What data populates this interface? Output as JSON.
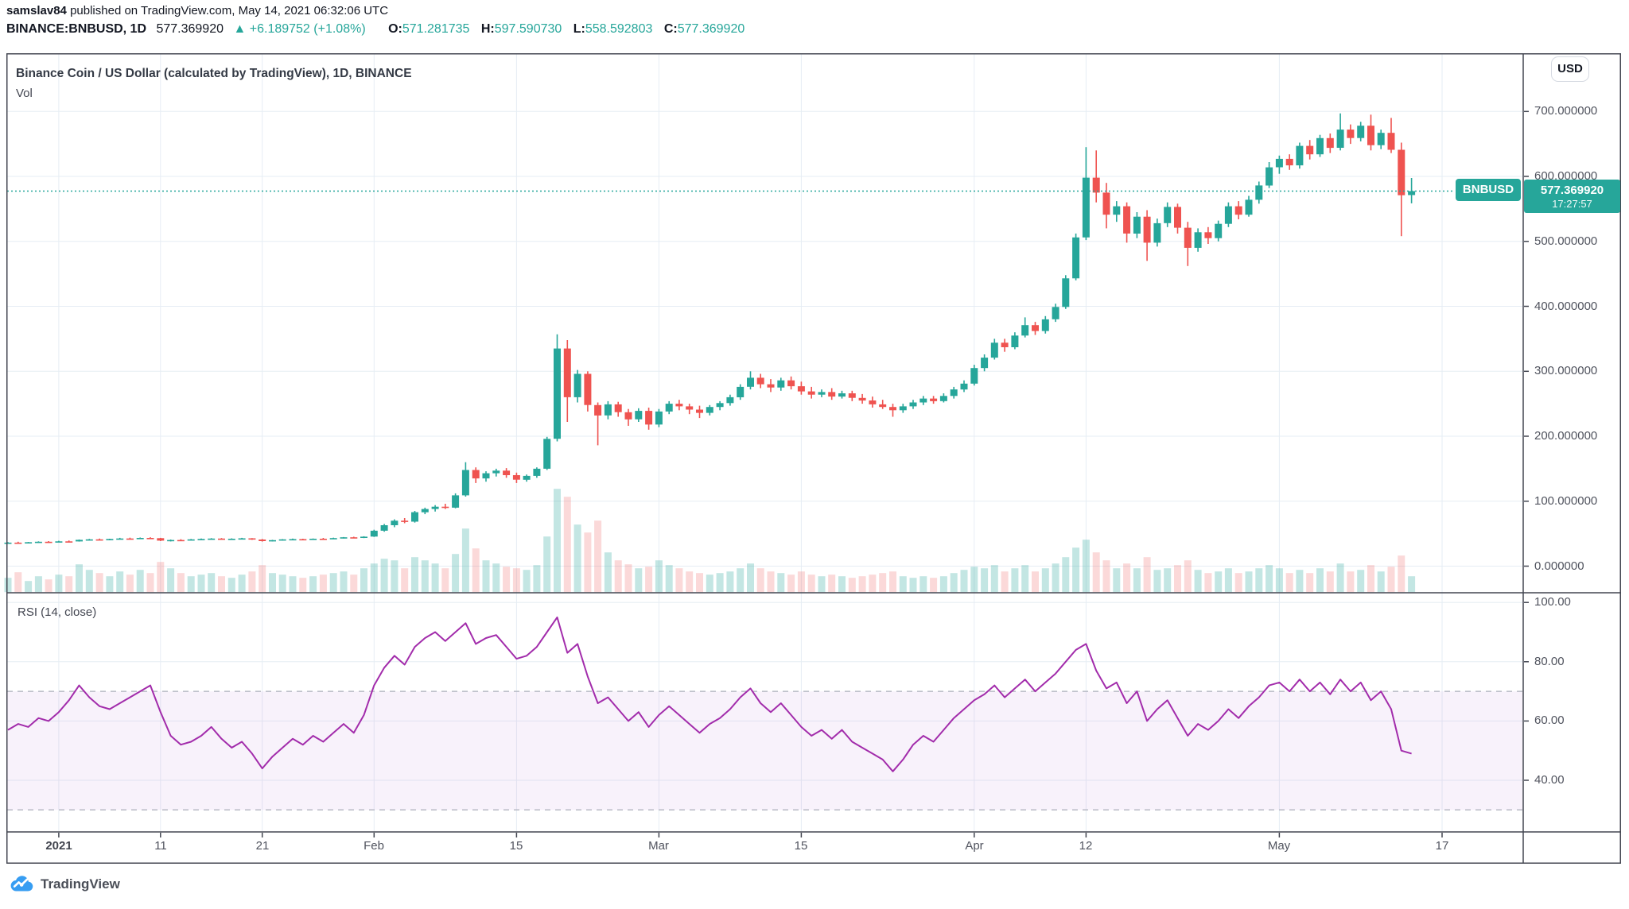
{
  "header": {
    "author": "samslav84",
    "publish_text": " published on TradingView.com, May 14, 2021 06:32:06 UTC"
  },
  "symbol_bar": {
    "symbol": "BINANCE:BNBUSD, 1D",
    "last": "577.369920",
    "direction": "▲",
    "change": "+6.189752 (+1.08%)",
    "o_label": "O:",
    "o": "571.281735",
    "h_label": "H:",
    "h": "597.590730",
    "l_label": "L:",
    "l": "558.592803",
    "c_label": "C:",
    "c": "577.369920"
  },
  "chart": {
    "title": "Binance Coin / US Dollar (calculated by TradingView), 1D, BINANCE",
    "vol_label": "Vol",
    "rsi_label": "RSI (14, close)",
    "currency_button": "USD"
  },
  "price_tag": {
    "symbol": "BNBUSD",
    "price": "577.369920",
    "countdown": "17:27:57"
  },
  "watermark": {
    "brand": "TradingView"
  },
  "colors": {
    "up": "#26a69a",
    "down": "#ef5350",
    "rsi_line": "#a22cab",
    "grid": "#e6edf4",
    "frame": "#434651",
    "band_fill": "rgba(169,84,199,0.08)",
    "band_dash": "#b7bac4",
    "vol_up": "rgba(38,166,154,0.28)",
    "vol_down": "rgba(239,83,80,0.22)"
  },
  "chart_data": {
    "type": "candlestick",
    "symbol": "BINANCE:BNBUSD",
    "interval": "1D",
    "start_date": "2020-12-27",
    "title": "Binance Coin / US Dollar (calculated by TradingView), 1D, BINANCE",
    "last_price": 577.36992,
    "price_axis": {
      "ticks": [
        700,
        600,
        500,
        400,
        300,
        200,
        100,
        0
      ],
      "labels": [
        "700.000000",
        "600.000000",
        "500.000000",
        "400.000000",
        "300.000000",
        "200.000000",
        "100.000000",
        "0.000000"
      ]
    },
    "rsi_axis": {
      "ticks": [
        100,
        80,
        60,
        40
      ],
      "labels": [
        "100.00",
        "80.00",
        "60.00",
        "40.00"
      ],
      "band": [
        70,
        30
      ],
      "params": "RSI (14, close)"
    },
    "time_axis": [
      {
        "label": "2021",
        "day": 5,
        "bold": true
      },
      {
        "label": "11",
        "day": 15
      },
      {
        "label": "21",
        "day": 25
      },
      {
        "label": "Feb",
        "day": 36
      },
      {
        "label": "15",
        "day": 50
      },
      {
        "label": "Mar",
        "day": 64
      },
      {
        "label": "15",
        "day": 78
      },
      {
        "label": "Apr",
        "day": 95
      },
      {
        "label": "12",
        "day": 106
      },
      {
        "label": "May",
        "day": 125
      },
      {
        "label": "17",
        "day": 141
      }
    ],
    "candles": [
      [
        35.5,
        37,
        34.5,
        36.2
      ],
      [
        36.2,
        37.5,
        35.3,
        35.8
      ],
      [
        35.8,
        37.2,
        35,
        36.8
      ],
      [
        36.8,
        38.2,
        36,
        37.6
      ],
      [
        37.6,
        38.5,
        36.5,
        37.2
      ],
      [
        37.2,
        39,
        36.8,
        38.2
      ],
      [
        38.2,
        39.5,
        37.5,
        38
      ],
      [
        38,
        41,
        37.8,
        40.5
      ],
      [
        40.5,
        42,
        39.5,
        41.2
      ],
      [
        41.2,
        42.5,
        40,
        41
      ],
      [
        41,
        42.2,
        39.8,
        41.8
      ],
      [
        41.8,
        43.5,
        41,
        42.6
      ],
      [
        42.6,
        43.8,
        41.5,
        42
      ],
      [
        42,
        44,
        41.6,
        43.4
      ],
      [
        43.4,
        44.5,
        42.5,
        43
      ],
      [
        43,
        43.6,
        38.5,
        39.2
      ],
      [
        39.2,
        41,
        38,
        40.2
      ],
      [
        40.2,
        41.5,
        39.5,
        40
      ],
      [
        40,
        41.8,
        39.6,
        41.2
      ],
      [
        41.2,
        42.6,
        40.5,
        41.8
      ],
      [
        41.8,
        43,
        41,
        42.4
      ],
      [
        42.4,
        43.2,
        41.2,
        41.6
      ],
      [
        41.6,
        42.8,
        40.8,
        42.2
      ],
      [
        42.2,
        43.5,
        41.5,
        42.8
      ],
      [
        42.8,
        43.2,
        40.5,
        41
      ],
      [
        41,
        41.8,
        37.8,
        38.6
      ],
      [
        38.6,
        40.5,
        38,
        40
      ],
      [
        40,
        41.6,
        39.4,
        41.2
      ],
      [
        41.2,
        42.4,
        40.2,
        41.6
      ],
      [
        41.6,
        42.2,
        40.4,
        41
      ],
      [
        41,
        42.6,
        40.6,
        42.2
      ],
      [
        42.2,
        43.4,
        41.4,
        42
      ],
      [
        42,
        43.8,
        41.6,
        43.2
      ],
      [
        43.2,
        44.8,
        42.6,
        44.4
      ],
      [
        44.4,
        45.2,
        43,
        43.6
      ],
      [
        43.6,
        46,
        43.2,
        45.4
      ],
      [
        45.4,
        56,
        45,
        54.5
      ],
      [
        54.5,
        65,
        53,
        63
      ],
      [
        63,
        72,
        60,
        70
      ],
      [
        70,
        74,
        66,
        68.5
      ],
      [
        68.5,
        85,
        67,
        83
      ],
      [
        83,
        90,
        80,
        88
      ],
      [
        88,
        94,
        84,
        91.5
      ],
      [
        91.5,
        96,
        88,
        90
      ],
      [
        90,
        112,
        89,
        109
      ],
      [
        109,
        160,
        107,
        148
      ],
      [
        148,
        152,
        128,
        135
      ],
      [
        135,
        146,
        130,
        143
      ],
      [
        143,
        150,
        138,
        147
      ],
      [
        147,
        151,
        136,
        140
      ],
      [
        140,
        144,
        128,
        133
      ],
      [
        133,
        141,
        130,
        139
      ],
      [
        139,
        152,
        136,
        150
      ],
      [
        150,
        199,
        148,
        196
      ],
      [
        196,
        357,
        192,
        335
      ],
      [
        335,
        348,
        222,
        260
      ],
      [
        260,
        302,
        252,
        296
      ],
      [
        296,
        300,
        238,
        248
      ],
      [
        248,
        252,
        186,
        232
      ],
      [
        232,
        254,
        226,
        249
      ],
      [
        249,
        253,
        230,
        237
      ],
      [
        237,
        242,
        216,
        226
      ],
      [
        226,
        243,
        222,
        239
      ],
      [
        239,
        244,
        210,
        218
      ],
      [
        218,
        242,
        214,
        238
      ],
      [
        238,
        254,
        234,
        250
      ],
      [
        250,
        256,
        240,
        246
      ],
      [
        246,
        250,
        234,
        241
      ],
      [
        241,
        247,
        228,
        236
      ],
      [
        236,
        248,
        232,
        245
      ],
      [
        245,
        254,
        240,
        251
      ],
      [
        251,
        264,
        247,
        260
      ],
      [
        260,
        280,
        256,
        276
      ],
      [
        276,
        300,
        272,
        290
      ],
      [
        290,
        296,
        274,
        280
      ],
      [
        280,
        288,
        268,
        275
      ],
      [
        275,
        290,
        270,
        286
      ],
      [
        286,
        292,
        272,
        277
      ],
      [
        277,
        284,
        264,
        269
      ],
      [
        269,
        276,
        258,
        264
      ],
      [
        264,
        272,
        260,
        268
      ],
      [
        268,
        274,
        256,
        261
      ],
      [
        261,
        270,
        258,
        266
      ],
      [
        266,
        270,
        254,
        259
      ],
      [
        259,
        265,
        250,
        255
      ],
      [
        255,
        261,
        244,
        249
      ],
      [
        249,
        256,
        242,
        245
      ],
      [
        245,
        250,
        230,
        240
      ],
      [
        240,
        250,
        236,
        246
      ],
      [
        246,
        256,
        242,
        252
      ],
      [
        252,
        262,
        248,
        258
      ],
      [
        258,
        262,
        250,
        254
      ],
      [
        254,
        266,
        252,
        262
      ],
      [
        262,
        276,
        258,
        272
      ],
      [
        272,
        286,
        268,
        281
      ],
      [
        281,
        310,
        278,
        305
      ],
      [
        305,
        326,
        300,
        321
      ],
      [
        321,
        350,
        318,
        344
      ],
      [
        344,
        350,
        330,
        337
      ],
      [
        337,
        360,
        334,
        355
      ],
      [
        355,
        383,
        352,
        371
      ],
      [
        371,
        376,
        356,
        362
      ],
      [
        362,
        385,
        358,
        380
      ],
      [
        380,
        404,
        376,
        399
      ],
      [
        399,
        448,
        396,
        443
      ],
      [
        443,
        512,
        440,
        506
      ],
      [
        506,
        645,
        502,
        598
      ],
      [
        598,
        640,
        560,
        575
      ],
      [
        575,
        590,
        520,
        541
      ],
      [
        541,
        562,
        530,
        554
      ],
      [
        554,
        560,
        498,
        512
      ],
      [
        512,
        545,
        505,
        538
      ],
      [
        538,
        548,
        470,
        498
      ],
      [
        498,
        535,
        492,
        528
      ],
      [
        528,
        560,
        522,
        553
      ],
      [
        553,
        558,
        512,
        521
      ],
      [
        521,
        530,
        462,
        490
      ],
      [
        490,
        520,
        484,
        514
      ],
      [
        514,
        522,
        496,
        505
      ],
      [
        505,
        532,
        500,
        527
      ],
      [
        527,
        560,
        522,
        554
      ],
      [
        554,
        562,
        534,
        541
      ],
      [
        541,
        570,
        538,
        564
      ],
      [
        564,
        592,
        558,
        586
      ],
      [
        586,
        622,
        582,
        614
      ],
      [
        614,
        632,
        604,
        627
      ],
      [
        627,
        634,
        610,
        617
      ],
      [
        617,
        652,
        612,
        647
      ],
      [
        647,
        656,
        626,
        634
      ],
      [
        634,
        664,
        630,
        659
      ],
      [
        659,
        666,
        636,
        644
      ],
      [
        644,
        697,
        640,
        672
      ],
      [
        672,
        680,
        650,
        659
      ],
      [
        659,
        684,
        654,
        678
      ],
      [
        678,
        695,
        640,
        648
      ],
      [
        648,
        672,
        642,
        667
      ],
      [
        667,
        690,
        636,
        641
      ],
      [
        641,
        652,
        508,
        571
      ],
      [
        571.28,
        597.59,
        558.59,
        577.37
      ]
    ],
    "volume_relative": [
      18,
      25,
      14,
      20,
      16,
      22,
      20,
      35,
      28,
      24,
      20,
      26,
      22,
      28,
      24,
      38,
      30,
      24,
      20,
      22,
      24,
      20,
      18,
      22,
      26,
      34,
      24,
      22,
      20,
      18,
      20,
      22,
      24,
      26,
      22,
      30,
      36,
      42,
      40,
      30,
      44,
      40,
      36,
      30,
      48,
      80,
      55,
      40,
      36,
      32,
      30,
      28,
      34,
      70,
      130,
      120,
      85,
      75,
      90,
      50,
      40,
      35,
      30,
      32,
      40,
      34,
      30,
      26,
      24,
      22,
      24,
      26,
      30,
      36,
      30,
      26,
      24,
      22,
      26,
      22,
      20,
      22,
      20,
      18,
      20,
      22,
      24,
      26,
      20,
      18,
      20,
      18,
      20,
      24,
      28,
      32,
      30,
      34,
      26,
      30,
      34,
      26,
      30,
      36,
      44,
      56,
      66,
      50,
      40,
      30,
      36,
      30,
      44,
      28,
      30,
      34,
      40,
      28,
      24,
      26,
      30,
      24,
      26,
      30,
      34,
      30,
      24,
      28,
      24,
      30,
      26,
      36,
      26,
      28,
      34,
      26,
      32,
      46,
      20
    ],
    "rsi": [
      57,
      59,
      58,
      61,
      60,
      63,
      67,
      72,
      68,
      65,
      64,
      66,
      68,
      70,
      72,
      63,
      55,
      52,
      53,
      55,
      58,
      54,
      51,
      53,
      49,
      44,
      48,
      51,
      54,
      52,
      55,
      53,
      56,
      59,
      56,
      62,
      72,
      78,
      82,
      79,
      85,
      88,
      90,
      87,
      90,
      93,
      86,
      88,
      89,
      85,
      81,
      82,
      85,
      90,
      95,
      83,
      86,
      75,
      66,
      68,
      64,
      60,
      63,
      58,
      62,
      65,
      62,
      59,
      56,
      59,
      61,
      64,
      68,
      71,
      66,
      63,
      66,
      62,
      58,
      55,
      57,
      54,
      57,
      53,
      51,
      49,
      47,
      43,
      47,
      52,
      55,
      53,
      57,
      61,
      64,
      67,
      69,
      72,
      68,
      71,
      74,
      70,
      73,
      76,
      80,
      84,
      86,
      77,
      71,
      73,
      66,
      70,
      60,
      64,
      67,
      61,
      55,
      59,
      57,
      60,
      64,
      61,
      65,
      68,
      72,
      73,
      70,
      74,
      70,
      73,
      69,
      74,
      70,
      73,
      67,
      70,
      64,
      50,
      49
    ]
  }
}
